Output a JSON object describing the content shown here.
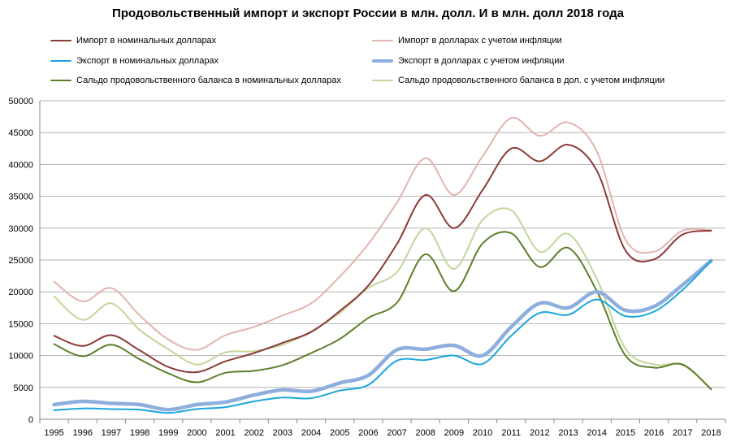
{
  "chart_data": {
    "type": "line",
    "title": "Продовольственный импорт и экспорт России в млн. долл. И в млн. долл 2018 года",
    "xlabel": "",
    "ylabel": "",
    "ylim": [
      0,
      50000
    ],
    "yticks": [
      0,
      5000,
      10000,
      15000,
      20000,
      25000,
      30000,
      35000,
      40000,
      45000,
      50000
    ],
    "grid": true,
    "legend_position": "top",
    "categories": [
      "1995",
      "1996",
      "1997",
      "1998",
      "1999",
      "2000",
      "2001",
      "2002",
      "2003",
      "2004",
      "2005",
      "2006",
      "2007",
      "2008",
      "2009",
      "2010",
      "2011",
      "2012",
      "2013",
      "2014",
      "2015",
      "2016",
      "2017",
      "2018"
    ],
    "series": [
      {
        "name": "Импорт в номинальных долларах",
        "color": "#8B3A36",
        "width": 2,
        "values": [
          13100,
          11500,
          13200,
          10800,
          8200,
          7400,
          9100,
          10400,
          12000,
          13700,
          17000,
          21000,
          27500,
          35200,
          30000,
          36000,
          42500,
          40500,
          43100,
          39000,
          26500,
          25100,
          29000,
          29600
        ]
      },
      {
        "name": "Импорт в долларах с учетом инфляции",
        "color": "#E3B3B0",
        "width": 2,
        "values": [
          21600,
          18500,
          20600,
          16300,
          12500,
          10900,
          13200,
          14500,
          16300,
          18200,
          22400,
          27500,
          34000,
          41000,
          35200,
          41300,
          47300,
          44500,
          46600,
          42000,
          28200,
          26300,
          29600,
          29700
        ]
      },
      {
        "name": "Экспорт в номинальных долларах",
        "color": "#1BA6DD",
        "width": 2,
        "values": [
          1400,
          1700,
          1600,
          1500,
          1000,
          1600,
          1900,
          2800,
          3400,
          3300,
          4500,
          5400,
          9200,
          9300,
          10000,
          8700,
          13100,
          16700,
          16400,
          18800,
          16200,
          16900,
          20300,
          24900
        ]
      },
      {
        "name": "Экспорт в долларах с учетом инфляции",
        "color": "#8EAEDD",
        "width": 4.5,
        "values": [
          2300,
          2800,
          2500,
          2300,
          1500,
          2300,
          2700,
          3800,
          4600,
          4400,
          5700,
          6900,
          10900,
          11000,
          11600,
          10000,
          14500,
          18200,
          17500,
          20000,
          17100,
          17700,
          21100,
          24900
        ]
      },
      {
        "name": "Сальдо продовольственного  баланса в номинальных долларах",
        "color": "#5F7F2A",
        "width": 2,
        "values": [
          11800,
          9900,
          11700,
          9400,
          7200,
          5800,
          7300,
          7600,
          8500,
          10400,
          12600,
          15900,
          18300,
          25900,
          20100,
          27600,
          29200,
          23900,
          26900,
          20100,
          10000,
          8100,
          8600,
          4700
        ]
      },
      {
        "name": "Сальдо продовольственного  баланса в дол. с учетом инфляции",
        "color": "#C2D69A",
        "width": 2,
        "values": [
          19300,
          15600,
          18200,
          14000,
          11000,
          8600,
          10500,
          10700,
          11700,
          13800,
          16700,
          20600,
          23100,
          30000,
          23600,
          31300,
          32800,
          26300,
          29100,
          22000,
          11100,
          8600,
          8500,
          4800
        ]
      }
    ]
  }
}
